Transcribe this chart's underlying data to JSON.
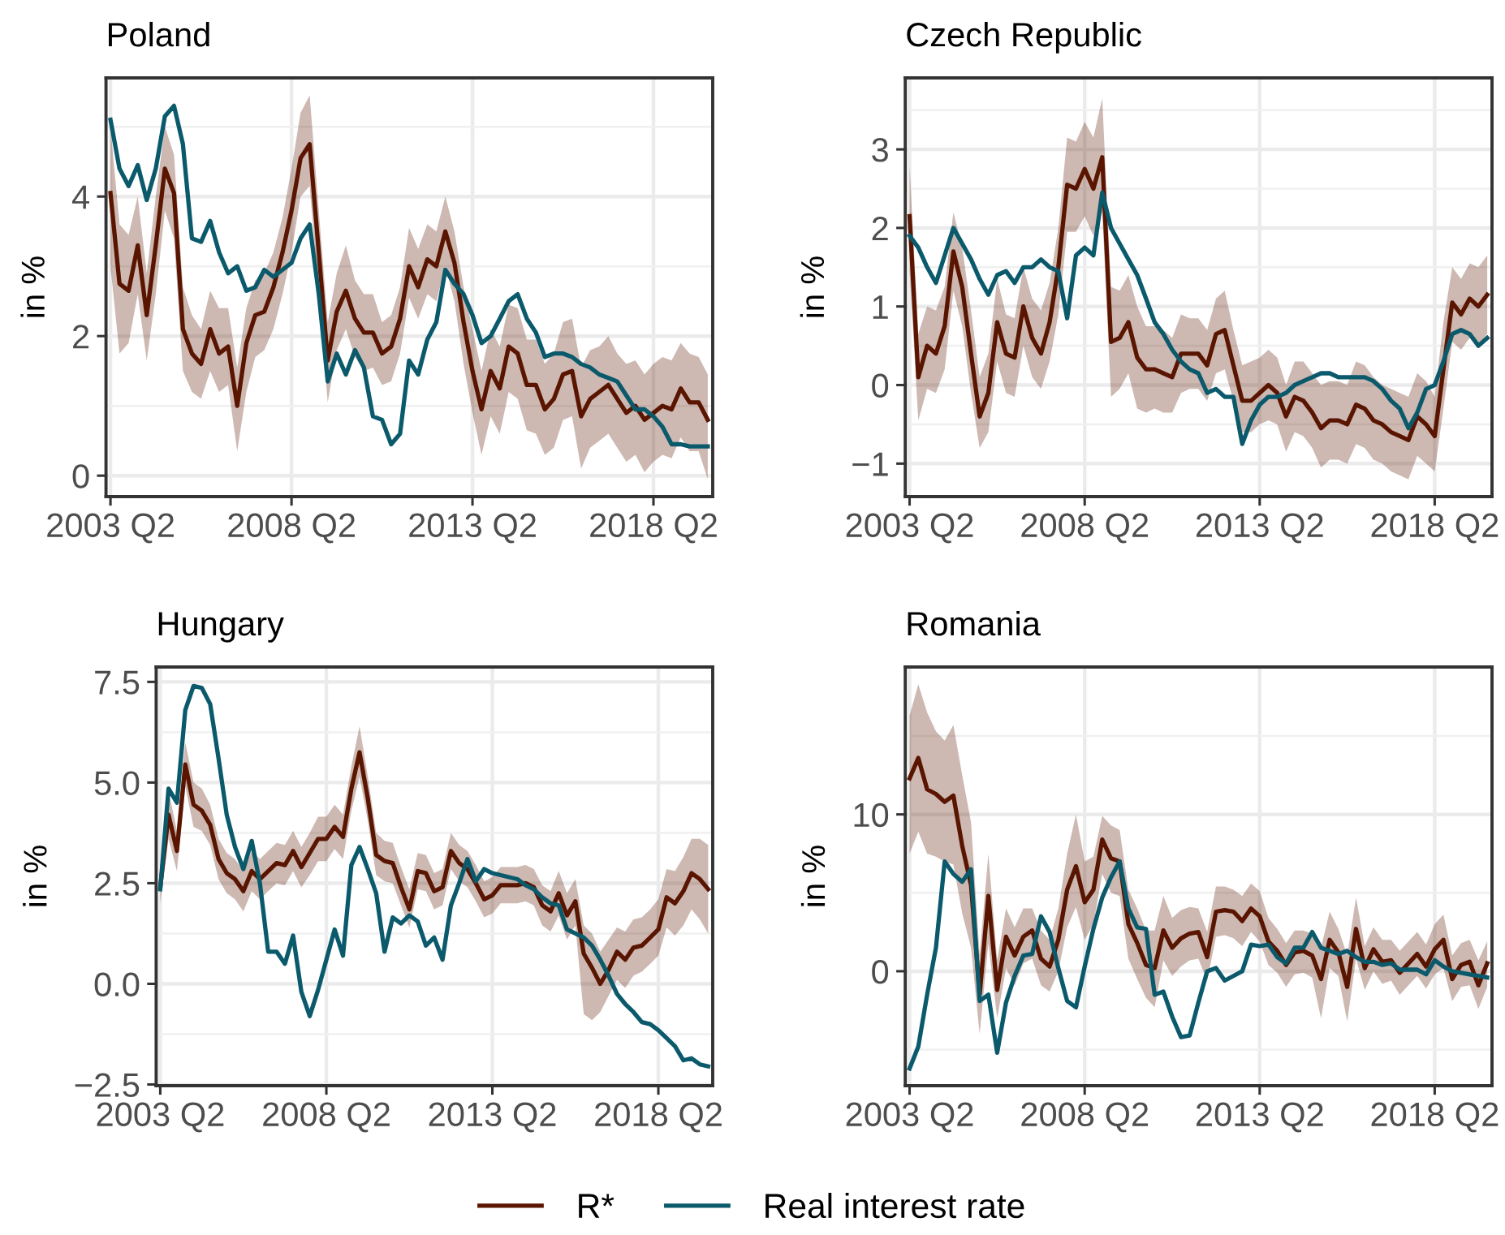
{
  "chart_data": [
    {
      "type": "line",
      "title": "Poland",
      "ylabel": "in %",
      "grid": true,
      "legend": "bottom",
      "x": [
        "2003-04",
        "2003-07",
        "2003-10",
        "2004-01",
        "2004-04",
        "2004-07",
        "2004-10",
        "2005-01",
        "2005-04",
        "2005-07",
        "2005-10",
        "2006-01",
        "2006-04",
        "2006-07",
        "2006-10",
        "2007-01",
        "2007-04",
        "2007-07",
        "2007-10",
        "2008-01",
        "2008-04",
        "2008-07",
        "2008-10",
        "2009-01",
        "2009-04",
        "2009-07",
        "2009-10",
        "2010-01",
        "2010-04",
        "2010-07",
        "2010-10",
        "2011-01",
        "2011-04",
        "2011-07",
        "2011-10",
        "2012-01",
        "2012-04",
        "2012-07",
        "2012-10",
        "2013-01",
        "2013-04",
        "2013-07",
        "2013-10",
        "2014-01",
        "2014-04",
        "2014-07",
        "2014-10",
        "2015-01",
        "2015-04",
        "2015-07",
        "2015-10",
        "2016-01",
        "2016-04",
        "2016-07",
        "2016-10",
        "2017-01",
        "2017-04",
        "2017-07",
        "2017-10",
        "2018-01",
        "2018-04",
        "2018-07",
        "2018-10",
        "2019-01",
        "2019-04",
        "2019-07",
        "2019-10"
      ],
      "xlim": [
        "2003-02-15",
        "2019-11-20"
      ],
      "xticks": [
        {
          "value": "2003-04",
          "label": "2003 Q2"
        },
        {
          "value": "2008-04",
          "label": "2008 Q2"
        },
        {
          "value": "2013-04",
          "label": "2013 Q2"
        },
        {
          "value": "2018-04",
          "label": "2018 Q2"
        }
      ],
      "ylim": [
        -0.3,
        5.7
      ],
      "yticks": [
        0,
        2,
        4
      ],
      "series": [
        {
          "name": "R*",
          "color": "#5a1500",
          "values": [
            4.05,
            2.75,
            2.65,
            3.3,
            2.3,
            3.3,
            4.4,
            4.05,
            2.1,
            1.75,
            1.6,
            2.1,
            1.75,
            1.85,
            1.0,
            1.9,
            2.3,
            2.35,
            2.7,
            3.2,
            3.8,
            4.55,
            4.75,
            3.2,
            1.65,
            2.35,
            2.65,
            2.25,
            2.05,
            2.05,
            1.75,
            1.85,
            2.25,
            3.0,
            2.7,
            3.1,
            3.0,
            3.5,
            3.05,
            2.2,
            1.5,
            0.95,
            1.5,
            1.25,
            1.85,
            1.75,
            1.3,
            1.3,
            0.95,
            1.1,
            1.45,
            1.5,
            0.85,
            1.1,
            1.2,
            1.3,
            1.1,
            0.9,
            1.0,
            0.8,
            0.9,
            1.0,
            0.95,
            1.25,
            1.05,
            1.05,
            0.8
          ],
          "lower": [
            3.0,
            1.75,
            1.9,
            2.6,
            1.65,
            2.6,
            3.8,
            3.4,
            1.5,
            1.2,
            1.1,
            1.5,
            1.2,
            1.3,
            0.35,
            1.2,
            1.7,
            1.8,
            2.1,
            2.6,
            3.2,
            4.0,
            4.15,
            2.6,
            1.05,
            1.8,
            2.1,
            1.7,
            1.5,
            1.55,
            1.3,
            1.35,
            1.75,
            2.55,
            2.25,
            2.6,
            2.5,
            3.0,
            2.5,
            1.6,
            0.9,
            0.3,
            0.85,
            0.6,
            1.2,
            1.1,
            0.65,
            0.6,
            0.3,
            0.4,
            0.8,
            0.85,
            0.1,
            0.4,
            0.5,
            0.6,
            0.4,
            0.2,
            0.3,
            0.05,
            0.2,
            0.3,
            0.25,
            0.55,
            0.35,
            0.35,
            -0.05
          ],
          "upper": [
            5.0,
            3.6,
            3.45,
            4.0,
            2.9,
            4.0,
            5.0,
            4.6,
            2.7,
            2.3,
            2.1,
            2.65,
            2.4,
            2.4,
            1.55,
            2.4,
            2.8,
            2.9,
            3.2,
            3.7,
            4.4,
            5.2,
            5.45,
            3.8,
            2.2,
            2.9,
            3.3,
            2.8,
            2.6,
            2.6,
            2.2,
            2.3,
            2.7,
            3.55,
            3.25,
            3.6,
            3.5,
            4.0,
            3.5,
            2.7,
            2.1,
            1.5,
            2.1,
            1.85,
            2.45,
            2.4,
            1.95,
            1.95,
            1.6,
            1.75,
            2.2,
            2.25,
            1.55,
            1.8,
            1.85,
            2.0,
            1.75,
            1.6,
            1.65,
            1.45,
            1.6,
            1.7,
            1.65,
            1.9,
            1.75,
            1.7,
            1.45
          ]
        },
        {
          "name": "Real interest rate",
          "color": "#0b5a6c",
          "values": [
            5.1,
            4.4,
            4.15,
            4.45,
            3.95,
            4.4,
            5.15,
            5.3,
            4.75,
            3.4,
            3.35,
            3.65,
            3.2,
            2.9,
            3.0,
            2.65,
            2.7,
            2.95,
            2.85,
            2.95,
            3.05,
            3.4,
            3.6,
            2.6,
            1.35,
            1.75,
            1.45,
            1.8,
            1.55,
            0.85,
            0.8,
            0.45,
            0.6,
            1.65,
            1.45,
            1.95,
            2.2,
            2.95,
            2.75,
            2.6,
            2.3,
            1.9,
            2.0,
            2.25,
            2.5,
            2.6,
            2.25,
            2.05,
            1.7,
            1.75,
            1.75,
            1.7,
            1.6,
            1.55,
            1.45,
            1.4,
            1.35,
            1.15,
            0.95,
            0.95,
            0.85,
            0.7,
            0.45,
            0.45,
            0.42,
            0.42,
            0.42
          ]
        }
      ]
    },
    {
      "type": "line",
      "title": "Czech Republic",
      "ylabel": "in %",
      "grid": true,
      "x": [
        "2003-04",
        "2003-07",
        "2003-10",
        "2004-01",
        "2004-04",
        "2004-07",
        "2004-10",
        "2005-01",
        "2005-04",
        "2005-07",
        "2005-10",
        "2006-01",
        "2006-04",
        "2006-07",
        "2006-10",
        "2007-01",
        "2007-04",
        "2007-07",
        "2007-10",
        "2008-01",
        "2008-04",
        "2008-07",
        "2008-10",
        "2009-01",
        "2009-04",
        "2009-07",
        "2009-10",
        "2010-01",
        "2010-04",
        "2010-07",
        "2010-10",
        "2011-01",
        "2011-04",
        "2011-07",
        "2011-10",
        "2012-01",
        "2012-04",
        "2012-07",
        "2012-10",
        "2013-01",
        "2013-04",
        "2013-07",
        "2013-10",
        "2014-01",
        "2014-04",
        "2014-07",
        "2014-10",
        "2015-01",
        "2015-04",
        "2015-07",
        "2015-10",
        "2016-01",
        "2016-04",
        "2016-07",
        "2016-10",
        "2017-01",
        "2017-04",
        "2017-07",
        "2017-10",
        "2018-01",
        "2018-04",
        "2018-07",
        "2018-10",
        "2019-01",
        "2019-04",
        "2019-07",
        "2019-10"
      ],
      "xlim": [
        "2003-02-15",
        "2019-11-20"
      ],
      "xticks": [
        {
          "value": "2003-04",
          "label": "2003 Q2"
        },
        {
          "value": "2008-04",
          "label": "2008 Q2"
        },
        {
          "value": "2013-04",
          "label": "2013 Q2"
        },
        {
          "value": "2018-04",
          "label": "2018 Q2"
        }
      ],
      "ylim": [
        -1.42,
        3.91
      ],
      "yticks": [
        {
          "value": -1,
          "label": "−1"
        },
        0,
        1,
        2,
        3
      ],
      "series": [
        {
          "name": "R*",
          "color": "#5a1500",
          "values": [
            2.15,
            0.1,
            0.5,
            0.4,
            0.75,
            1.7,
            1.25,
            0.4,
            -0.4,
            -0.1,
            0.8,
            0.4,
            0.35,
            1.0,
            0.6,
            0.4,
            0.8,
            1.5,
            2.55,
            2.5,
            2.75,
            2.5,
            2.9,
            0.55,
            0.6,
            0.8,
            0.35,
            0.2,
            0.2,
            0.15,
            0.1,
            0.4,
            0.4,
            0.4,
            0.25,
            0.65,
            0.7,
            0.25,
            -0.2,
            -0.2,
            -0.1,
            0.0,
            -0.1,
            -0.4,
            -0.15,
            -0.2,
            -0.35,
            -0.55,
            -0.45,
            -0.45,
            -0.5,
            -0.25,
            -0.3,
            -0.45,
            -0.5,
            -0.6,
            -0.65,
            -0.7,
            -0.4,
            -0.5,
            -0.65,
            0.2,
            1.05,
            0.9,
            1.1,
            1.0,
            1.15
          ],
          "lower": [
            1.45,
            -0.45,
            -0.05,
            -0.1,
            0.2,
            1.2,
            0.75,
            -0.1,
            -0.8,
            -0.6,
            0.3,
            -0.1,
            -0.15,
            0.5,
            0.1,
            -0.05,
            0.3,
            0.9,
            1.95,
            1.95,
            2.15,
            1.9,
            2.2,
            -0.15,
            -0.05,
            0.15,
            -0.3,
            -0.35,
            -0.3,
            -0.35,
            -0.35,
            -0.1,
            -0.05,
            -0.05,
            -0.2,
            0.15,
            0.2,
            -0.2,
            -0.6,
            -0.6,
            -0.5,
            -0.45,
            -0.5,
            -0.85,
            -0.6,
            -0.65,
            -0.8,
            -1.05,
            -0.95,
            -0.95,
            -1.0,
            -0.75,
            -0.8,
            -0.95,
            -1.0,
            -1.1,
            -1.15,
            -1.2,
            -0.9,
            -1.0,
            -1.1,
            -0.3,
            0.55,
            0.45,
            0.6,
            0.5,
            0.65
          ],
          "upper": [
            2.8,
            0.65,
            1.0,
            0.95,
            1.25,
            2.2,
            1.75,
            0.95,
            0.1,
            0.4,
            1.35,
            0.9,
            0.85,
            1.5,
            1.1,
            0.95,
            1.3,
            2.0,
            3.15,
            3.1,
            3.35,
            3.15,
            3.65,
            1.25,
            1.2,
            1.4,
            1.0,
            0.75,
            0.75,
            0.7,
            0.6,
            0.9,
            0.85,
            0.85,
            0.7,
            1.1,
            1.2,
            0.7,
            0.25,
            0.3,
            0.35,
            0.45,
            0.35,
            0.0,
            0.3,
            0.3,
            0.15,
            0.0,
            0.05,
            0.05,
            0.0,
            0.3,
            0.25,
            0.1,
            0.0,
            -0.05,
            -0.1,
            -0.15,
            0.15,
            0.05,
            -0.15,
            0.8,
            1.5,
            1.35,
            1.55,
            1.5,
            1.65
          ]
        },
        {
          "name": "Real interest rate",
          "color": "#0b5a6c",
          "values": [
            1.9,
            1.75,
            1.5,
            1.3,
            1.65,
            2.0,
            1.8,
            1.6,
            1.35,
            1.15,
            1.4,
            1.45,
            1.3,
            1.5,
            1.5,
            1.6,
            1.5,
            1.45,
            0.85,
            1.65,
            1.75,
            1.65,
            2.45,
            2.0,
            1.8,
            1.6,
            1.4,
            1.1,
            0.8,
            0.65,
            0.45,
            0.3,
            0.2,
            0.15,
            -0.1,
            -0.05,
            -0.15,
            -0.15,
            -0.75,
            -0.45,
            -0.25,
            -0.15,
            -0.15,
            -0.1,
            0.0,
            0.05,
            0.1,
            0.15,
            0.15,
            0.1,
            0.1,
            0.1,
            0.1,
            0.05,
            -0.05,
            -0.2,
            -0.3,
            -0.55,
            -0.35,
            -0.05,
            0.0,
            0.3,
            0.65,
            0.7,
            0.65,
            0.5,
            0.6
          ]
        }
      ]
    },
    {
      "type": "line",
      "title": "Hungary",
      "ylabel": "in %",
      "grid": true,
      "x": [
        "2003-04",
        "2003-07",
        "2003-10",
        "2004-01",
        "2004-04",
        "2004-07",
        "2004-10",
        "2005-01",
        "2005-04",
        "2005-07",
        "2005-10",
        "2006-01",
        "2006-04",
        "2006-07",
        "2006-10",
        "2007-01",
        "2007-04",
        "2007-07",
        "2007-10",
        "2008-01",
        "2008-04",
        "2008-07",
        "2008-10",
        "2009-01",
        "2009-04",
        "2009-07",
        "2009-10",
        "2010-01",
        "2010-04",
        "2010-07",
        "2010-10",
        "2011-01",
        "2011-04",
        "2011-07",
        "2011-10",
        "2012-01",
        "2012-04",
        "2012-07",
        "2012-10",
        "2013-01",
        "2013-04",
        "2013-07",
        "2013-10",
        "2014-01",
        "2014-04",
        "2014-07",
        "2014-10",
        "2015-01",
        "2015-04",
        "2015-07",
        "2015-10",
        "2016-01",
        "2016-04",
        "2016-07",
        "2016-10",
        "2017-01",
        "2017-04",
        "2017-07",
        "2017-10",
        "2018-01",
        "2018-04",
        "2018-07",
        "2018-10",
        "2019-01",
        "2019-04",
        "2019-07",
        "2019-10"
      ],
      "xlim": [
        "2003-02-15",
        "2019-11-20"
      ],
      "xticks": [
        {
          "value": "2003-04",
          "label": "2003 Q2"
        },
        {
          "value": "2008-04",
          "label": "2008 Q2"
        },
        {
          "value": "2013-04",
          "label": "2013 Q2"
        },
        {
          "value": "2018-04",
          "label": "2018 Q2"
        }
      ],
      "ylim": [
        -2.53,
        7.87
      ],
      "yticks": [
        {
          "value": -2.5,
          "label": "−2.5"
        },
        {
          "value": 0,
          "label": "0.0"
        },
        2.5,
        {
          "value": 5,
          "label": "5.0"
        },
        7.5
      ],
      "series": [
        {
          "name": "R*",
          "color": "#5a1500",
          "values": [
            2.4,
            4.2,
            3.3,
            5.45,
            4.45,
            4.3,
            3.95,
            3.1,
            2.75,
            2.6,
            2.3,
            2.8,
            2.6,
            2.8,
            3.0,
            2.95,
            3.3,
            2.9,
            3.25,
            3.6,
            3.6,
            3.9,
            3.65,
            4.85,
            5.75,
            4.6,
            3.2,
            3.05,
            3.0,
            2.4,
            1.85,
            2.8,
            2.75,
            2.3,
            2.4,
            3.3,
            3.0,
            2.85,
            2.5,
            2.1,
            2.2,
            2.45,
            2.45,
            2.45,
            2.5,
            2.4,
            1.95,
            1.8,
            2.25,
            1.7,
            2.05,
            0.75,
            0.4,
            0.0,
            0.35,
            0.8,
            0.6,
            0.9,
            0.95,
            1.15,
            1.35,
            2.15,
            2.0,
            2.3,
            2.75,
            2.6,
            2.35
          ],
          "lower": [
            2.0,
            3.6,
            2.8,
            4.9,
            3.9,
            3.8,
            3.45,
            2.6,
            2.25,
            2.1,
            1.8,
            2.3,
            2.1,
            2.3,
            2.5,
            2.45,
            2.8,
            2.4,
            2.7,
            3.05,
            3.05,
            3.35,
            3.1,
            4.3,
            5.15,
            4.05,
            2.7,
            2.55,
            2.5,
            1.95,
            1.4,
            2.35,
            2.3,
            1.85,
            1.95,
            2.85,
            2.55,
            2.4,
            2.05,
            1.65,
            1.75,
            2.0,
            2.0,
            2.0,
            2.05,
            1.95,
            1.45,
            1.3,
            1.7,
            1.1,
            1.45,
            -0.75,
            -0.9,
            -0.7,
            -0.3,
            0.1,
            -0.1,
            0.2,
            0.3,
            0.5,
            0.7,
            1.4,
            1.2,
            1.45,
            1.85,
            1.6,
            1.25
          ],
          "upper": [
            2.9,
            4.8,
            3.8,
            6.0,
            5.0,
            4.85,
            4.45,
            3.6,
            3.25,
            3.1,
            2.8,
            3.3,
            3.1,
            3.3,
            3.5,
            3.45,
            3.8,
            3.4,
            3.75,
            4.15,
            4.15,
            4.45,
            4.2,
            5.4,
            6.4,
            5.15,
            3.75,
            3.55,
            3.5,
            2.9,
            2.35,
            3.25,
            3.2,
            2.75,
            2.85,
            3.75,
            3.45,
            3.3,
            2.95,
            2.55,
            2.65,
            2.9,
            2.9,
            2.9,
            2.95,
            2.85,
            2.45,
            2.3,
            2.8,
            2.25,
            2.6,
            1.45,
            1.25,
            0.8,
            1.1,
            1.4,
            1.3,
            1.6,
            1.65,
            1.85,
            2.1,
            2.85,
            2.8,
            3.15,
            3.6,
            3.6,
            3.45
          ]
        },
        {
          "name": "Real interest rate",
          "color": "#0b5a6c",
          "values": [
            2.35,
            4.85,
            4.5,
            6.8,
            7.4,
            7.35,
            6.95,
            5.6,
            4.2,
            3.4,
            2.85,
            3.55,
            2.5,
            0.8,
            0.8,
            0.5,
            1.2,
            -0.2,
            -0.8,
            -0.15,
            0.6,
            1.35,
            0.7,
            2.95,
            3.4,
            2.85,
            2.25,
            0.8,
            1.65,
            1.5,
            1.7,
            1.55,
            0.95,
            1.15,
            0.6,
            1.95,
            2.5,
            3.1,
            2.55,
            2.85,
            2.75,
            2.7,
            2.65,
            2.6,
            2.45,
            2.35,
            2.15,
            2.0,
            1.95,
            1.35,
            1.25,
            1.15,
            0.95,
            0.6,
            0.2,
            -0.25,
            -0.5,
            -0.7,
            -0.95,
            -1.0,
            -1.15,
            -1.35,
            -1.55,
            -1.9,
            -1.85,
            -2.0,
            -2.05
          ]
        }
      ]
    },
    {
      "type": "line",
      "title": "Romania",
      "ylabel": "in %",
      "grid": true,
      "x": [
        "2003-04",
        "2003-07",
        "2003-10",
        "2004-01",
        "2004-04",
        "2004-07",
        "2004-10",
        "2005-01",
        "2005-04",
        "2005-07",
        "2005-10",
        "2006-01",
        "2006-04",
        "2006-07",
        "2006-10",
        "2007-01",
        "2007-04",
        "2007-07",
        "2007-10",
        "2008-01",
        "2008-04",
        "2008-07",
        "2008-10",
        "2009-01",
        "2009-04",
        "2009-07",
        "2009-10",
        "2010-01",
        "2010-04",
        "2010-07",
        "2010-10",
        "2011-01",
        "2011-04",
        "2011-07",
        "2011-10",
        "2012-01",
        "2012-04",
        "2012-07",
        "2012-10",
        "2013-01",
        "2013-04",
        "2013-07",
        "2013-10",
        "2014-01",
        "2014-04",
        "2014-07",
        "2014-10",
        "2015-01",
        "2015-04",
        "2015-07",
        "2015-10",
        "2016-01",
        "2016-04",
        "2016-07",
        "2016-10",
        "2017-01",
        "2017-04",
        "2017-07",
        "2017-10",
        "2018-01",
        "2018-04",
        "2018-07",
        "2018-10",
        "2019-01",
        "2019-04",
        "2019-07",
        "2019-10"
      ],
      "xlim": [
        "2003-02-15",
        "2019-11-20"
      ],
      "xticks": [
        {
          "value": "2003-04",
          "label": "2003 Q2"
        },
        {
          "value": "2008-04",
          "label": "2008 Q2"
        },
        {
          "value": "2013-04",
          "label": "2013 Q2"
        },
        {
          "value": "2018-04",
          "label": "2018 Q2"
        }
      ],
      "ylim": [
        -7.3,
        19.4
      ],
      "yticks": [
        0,
        10
      ],
      "series": [
        {
          "name": "R*",
          "color": "#5a1500",
          "values": [
            12.3,
            13.6,
            11.6,
            11.3,
            10.8,
            11.2,
            8.0,
            5.5,
            -1.5,
            4.8,
            -1.2,
            2.2,
            1.0,
            2.2,
            2.6,
            0.8,
            0.3,
            2.0,
            5.2,
            6.7,
            4.4,
            5.2,
            8.4,
            7.2,
            7.0,
            3.0,
            1.8,
            0.4,
            0.2,
            2.6,
            1.5,
            2.1,
            2.4,
            2.5,
            0.9,
            3.8,
            3.9,
            3.8,
            3.2,
            4.0,
            3.5,
            1.9,
            1.3,
            0.4,
            1.2,
            1.3,
            1.0,
            -0.5,
            2.0,
            1.2,
            -1.0,
            2.7,
            0.2,
            1.4,
            0.6,
            0.7,
            -0.1,
            0.5,
            1.1,
            0.3,
            1.4,
            2.0,
            -0.5,
            0.4,
            0.6,
            -0.9,
            0.5
          ],
          "lower": [
            7.5,
            8.9,
            7.5,
            7.3,
            7.0,
            6.8,
            3.7,
            1.5,
            -4.0,
            1.8,
            -3.0,
            0.2,
            -0.9,
            0.5,
            0.8,
            -0.9,
            -1.3,
            0.0,
            2.8,
            4.1,
            2.0,
            3.0,
            6.2,
            5.0,
            4.8,
            0.8,
            -0.5,
            -1.7,
            -2.3,
            0.7,
            -0.3,
            0.3,
            0.7,
            0.8,
            -0.6,
            2.2,
            2.3,
            2.1,
            1.6,
            2.5,
            1.9,
            0.4,
            -0.1,
            -1.0,
            -0.2,
            -0.1,
            -0.4,
            -3.0,
            0.2,
            -0.3,
            -3.2,
            0.8,
            -1.2,
            0.0,
            -0.8,
            -0.6,
            -1.5,
            -0.9,
            -0.3,
            -1.1,
            -0.2,
            0.2,
            -1.9,
            -1.0,
            -0.9,
            -2.4,
            -1.0
          ],
          "upper": [
            16.3,
            18.3,
            16.5,
            15.3,
            14.7,
            15.7,
            12.5,
            9.5,
            1.0,
            7.5,
            0.7,
            4.0,
            2.8,
            4.0,
            4.0,
            2.6,
            2.0,
            4.0,
            7.5,
            10.0,
            7.0,
            7.3,
            9.9,
            9.3,
            9.0,
            5.2,
            4.0,
            2.6,
            2.6,
            4.8,
            3.4,
            3.9,
            4.1,
            4.0,
            2.5,
            5.4,
            5.4,
            5.2,
            4.8,
            5.6,
            5.1,
            3.4,
            2.7,
            1.8,
            2.6,
            2.6,
            2.4,
            1.5,
            3.8,
            2.7,
            1.0,
            4.7,
            1.6,
            2.8,
            2.0,
            2.0,
            1.3,
            1.9,
            2.5,
            1.7,
            3.0,
            3.6,
            1.0,
            1.8,
            2.0,
            0.7,
            1.9
          ]
        },
        {
          "name": "Real interest rate",
          "color": "#0b5a6c",
          "values": [
            -6.2,
            -4.8,
            -1.5,
            1.5,
            7.0,
            6.2,
            5.7,
            6.5,
            -1.9,
            -1.5,
            -5.2,
            -2.0,
            -0.3,
            1.0,
            1.1,
            3.5,
            2.5,
            0.2,
            -1.9,
            -2.3,
            0.3,
            2.7,
            4.7,
            6.0,
            7.0,
            4.0,
            2.8,
            2.7,
            -1.5,
            -1.3,
            -2.9,
            -4.2,
            -4.1,
            -2.0,
            0.0,
            0.2,
            -0.6,
            -0.3,
            0.0,
            1.7,
            1.6,
            1.7,
            0.9,
            0.5,
            1.5,
            1.5,
            2.5,
            1.5,
            1.3,
            1.1,
            1.3,
            0.9,
            0.6,
            0.6,
            0.4,
            0.5,
            0.1,
            0.1,
            0.1,
            -0.2,
            0.7,
            0.3,
            0.0,
            -0.1,
            -0.2,
            -0.3,
            -0.4
          ]
        }
      ]
    }
  ]
}
